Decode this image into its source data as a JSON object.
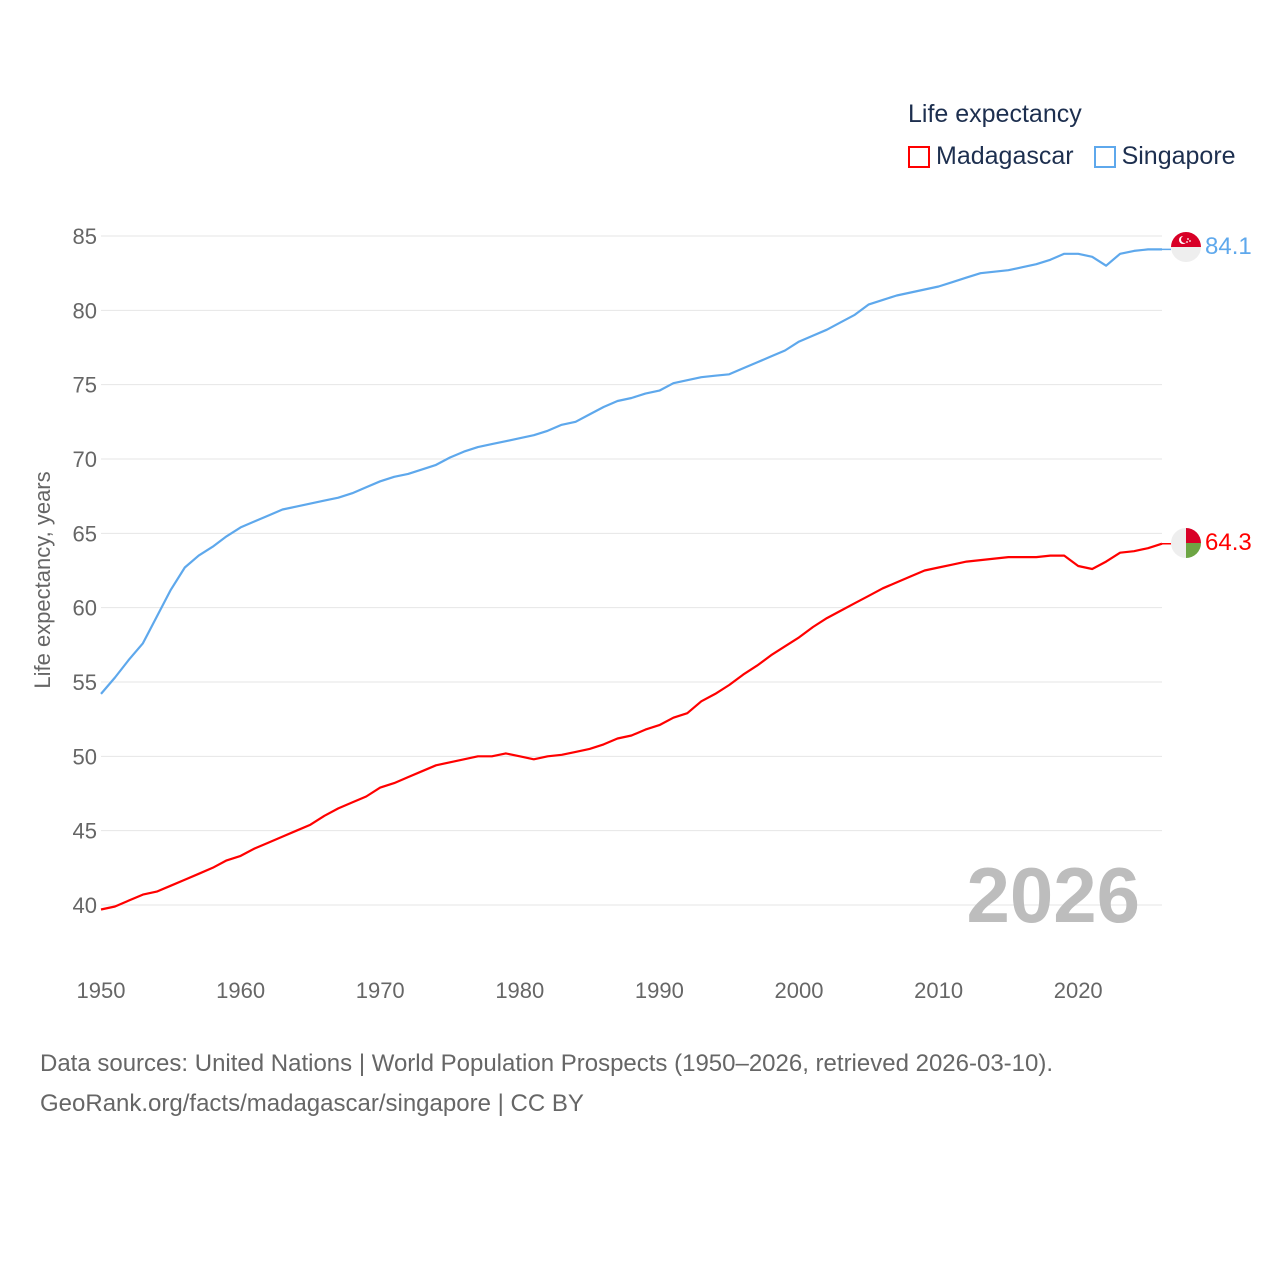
{
  "legend": {
    "title": "Life expectancy",
    "items": [
      {
        "label": "Madagascar",
        "color": "#ff0000"
      },
      {
        "label": "Singapore",
        "color": "#5ea8ec"
      }
    ]
  },
  "footer": {
    "line1": "Data sources: United Nations | World Population Prospects (1950–2026, retrieved 2026-03-10).",
    "line2": "GeoRank.org/facts/madagascar/singapore | CC BY"
  },
  "chart_data": {
    "type": "line",
    "title": "Life expectancy",
    "xlabel": "",
    "ylabel": "Life expectancy, years",
    "xlim": [
      1950,
      2026
    ],
    "ylim": [
      37.5,
      86
    ],
    "xticks": [
      "1950",
      "1960",
      "1970",
      "1980",
      "1990",
      "2000",
      "2010",
      "2020"
    ],
    "yticks": [
      "40",
      "45",
      "50",
      "55",
      "60",
      "65",
      "70",
      "75",
      "80",
      "85"
    ],
    "grid": true,
    "legend_position": "top-right",
    "year_watermark": "2026",
    "x": [
      1950,
      1951,
      1952,
      1953,
      1954,
      1955,
      1956,
      1957,
      1958,
      1959,
      1960,
      1961,
      1962,
      1963,
      1964,
      1965,
      1966,
      1967,
      1968,
      1969,
      1970,
      1971,
      1972,
      1973,
      1974,
      1975,
      1976,
      1977,
      1978,
      1979,
      1980,
      1981,
      1982,
      1983,
      1984,
      1985,
      1986,
      1987,
      1988,
      1989,
      1990,
      1991,
      1992,
      1993,
      1994,
      1995,
      1996,
      1997,
      1998,
      1999,
      2000,
      2001,
      2002,
      2003,
      2004,
      2005,
      2006,
      2007,
      2008,
      2009,
      2010,
      2011,
      2012,
      2013,
      2014,
      2015,
      2016,
      2017,
      2018,
      2019,
      2020,
      2021,
      2022,
      2023,
      2024,
      2025,
      2026
    ],
    "series": [
      {
        "name": "Madagascar",
        "color": "#ff0000",
        "end_label": "64.3",
        "values": [
          39.7,
          39.9,
          40.3,
          40.7,
          40.9,
          41.3,
          41.7,
          42.1,
          42.5,
          43.0,
          43.3,
          43.8,
          44.2,
          44.6,
          45.0,
          45.4,
          46.0,
          46.5,
          46.9,
          47.3,
          47.9,
          48.2,
          48.6,
          49.0,
          49.4,
          49.6,
          49.8,
          50.0,
          50.0,
          50.2,
          50.0,
          49.8,
          50.0,
          50.1,
          50.3,
          50.5,
          50.8,
          51.2,
          51.4,
          51.8,
          52.1,
          52.6,
          52.9,
          53.7,
          54.2,
          54.8,
          55.5,
          56.1,
          56.8,
          57.4,
          58.0,
          58.7,
          59.3,
          59.8,
          60.3,
          60.8,
          61.3,
          61.7,
          62.1,
          62.5,
          62.7,
          62.9,
          63.1,
          63.2,
          63.3,
          63.4,
          63.4,
          63.4,
          63.5,
          63.5,
          62.8,
          62.6,
          63.1,
          63.7,
          63.8,
          64.0,
          64.3
        ]
      },
      {
        "name": "Singapore",
        "color": "#5ea8ec",
        "end_label": "84.1",
        "values": [
          54.2,
          55.3,
          56.5,
          57.6,
          59.4,
          61.2,
          62.7,
          63.5,
          64.1,
          64.8,
          65.4,
          65.8,
          66.2,
          66.6,
          66.8,
          67.0,
          67.2,
          67.4,
          67.7,
          68.1,
          68.5,
          68.8,
          69.0,
          69.3,
          69.6,
          70.1,
          70.5,
          70.8,
          71.0,
          71.2,
          71.4,
          71.6,
          71.9,
          72.3,
          72.5,
          73.0,
          73.5,
          73.9,
          74.1,
          74.4,
          74.6,
          75.1,
          75.3,
          75.5,
          75.6,
          75.7,
          76.1,
          76.5,
          76.9,
          77.3,
          77.9,
          78.3,
          78.7,
          79.2,
          79.7,
          80.4,
          80.7,
          81.0,
          81.2,
          81.4,
          81.6,
          81.9,
          82.2,
          82.5,
          82.6,
          82.7,
          82.9,
          83.1,
          83.4,
          83.8,
          83.8,
          83.6,
          83.0,
          83.8,
          84.0,
          84.1,
          84.1
        ]
      }
    ]
  }
}
